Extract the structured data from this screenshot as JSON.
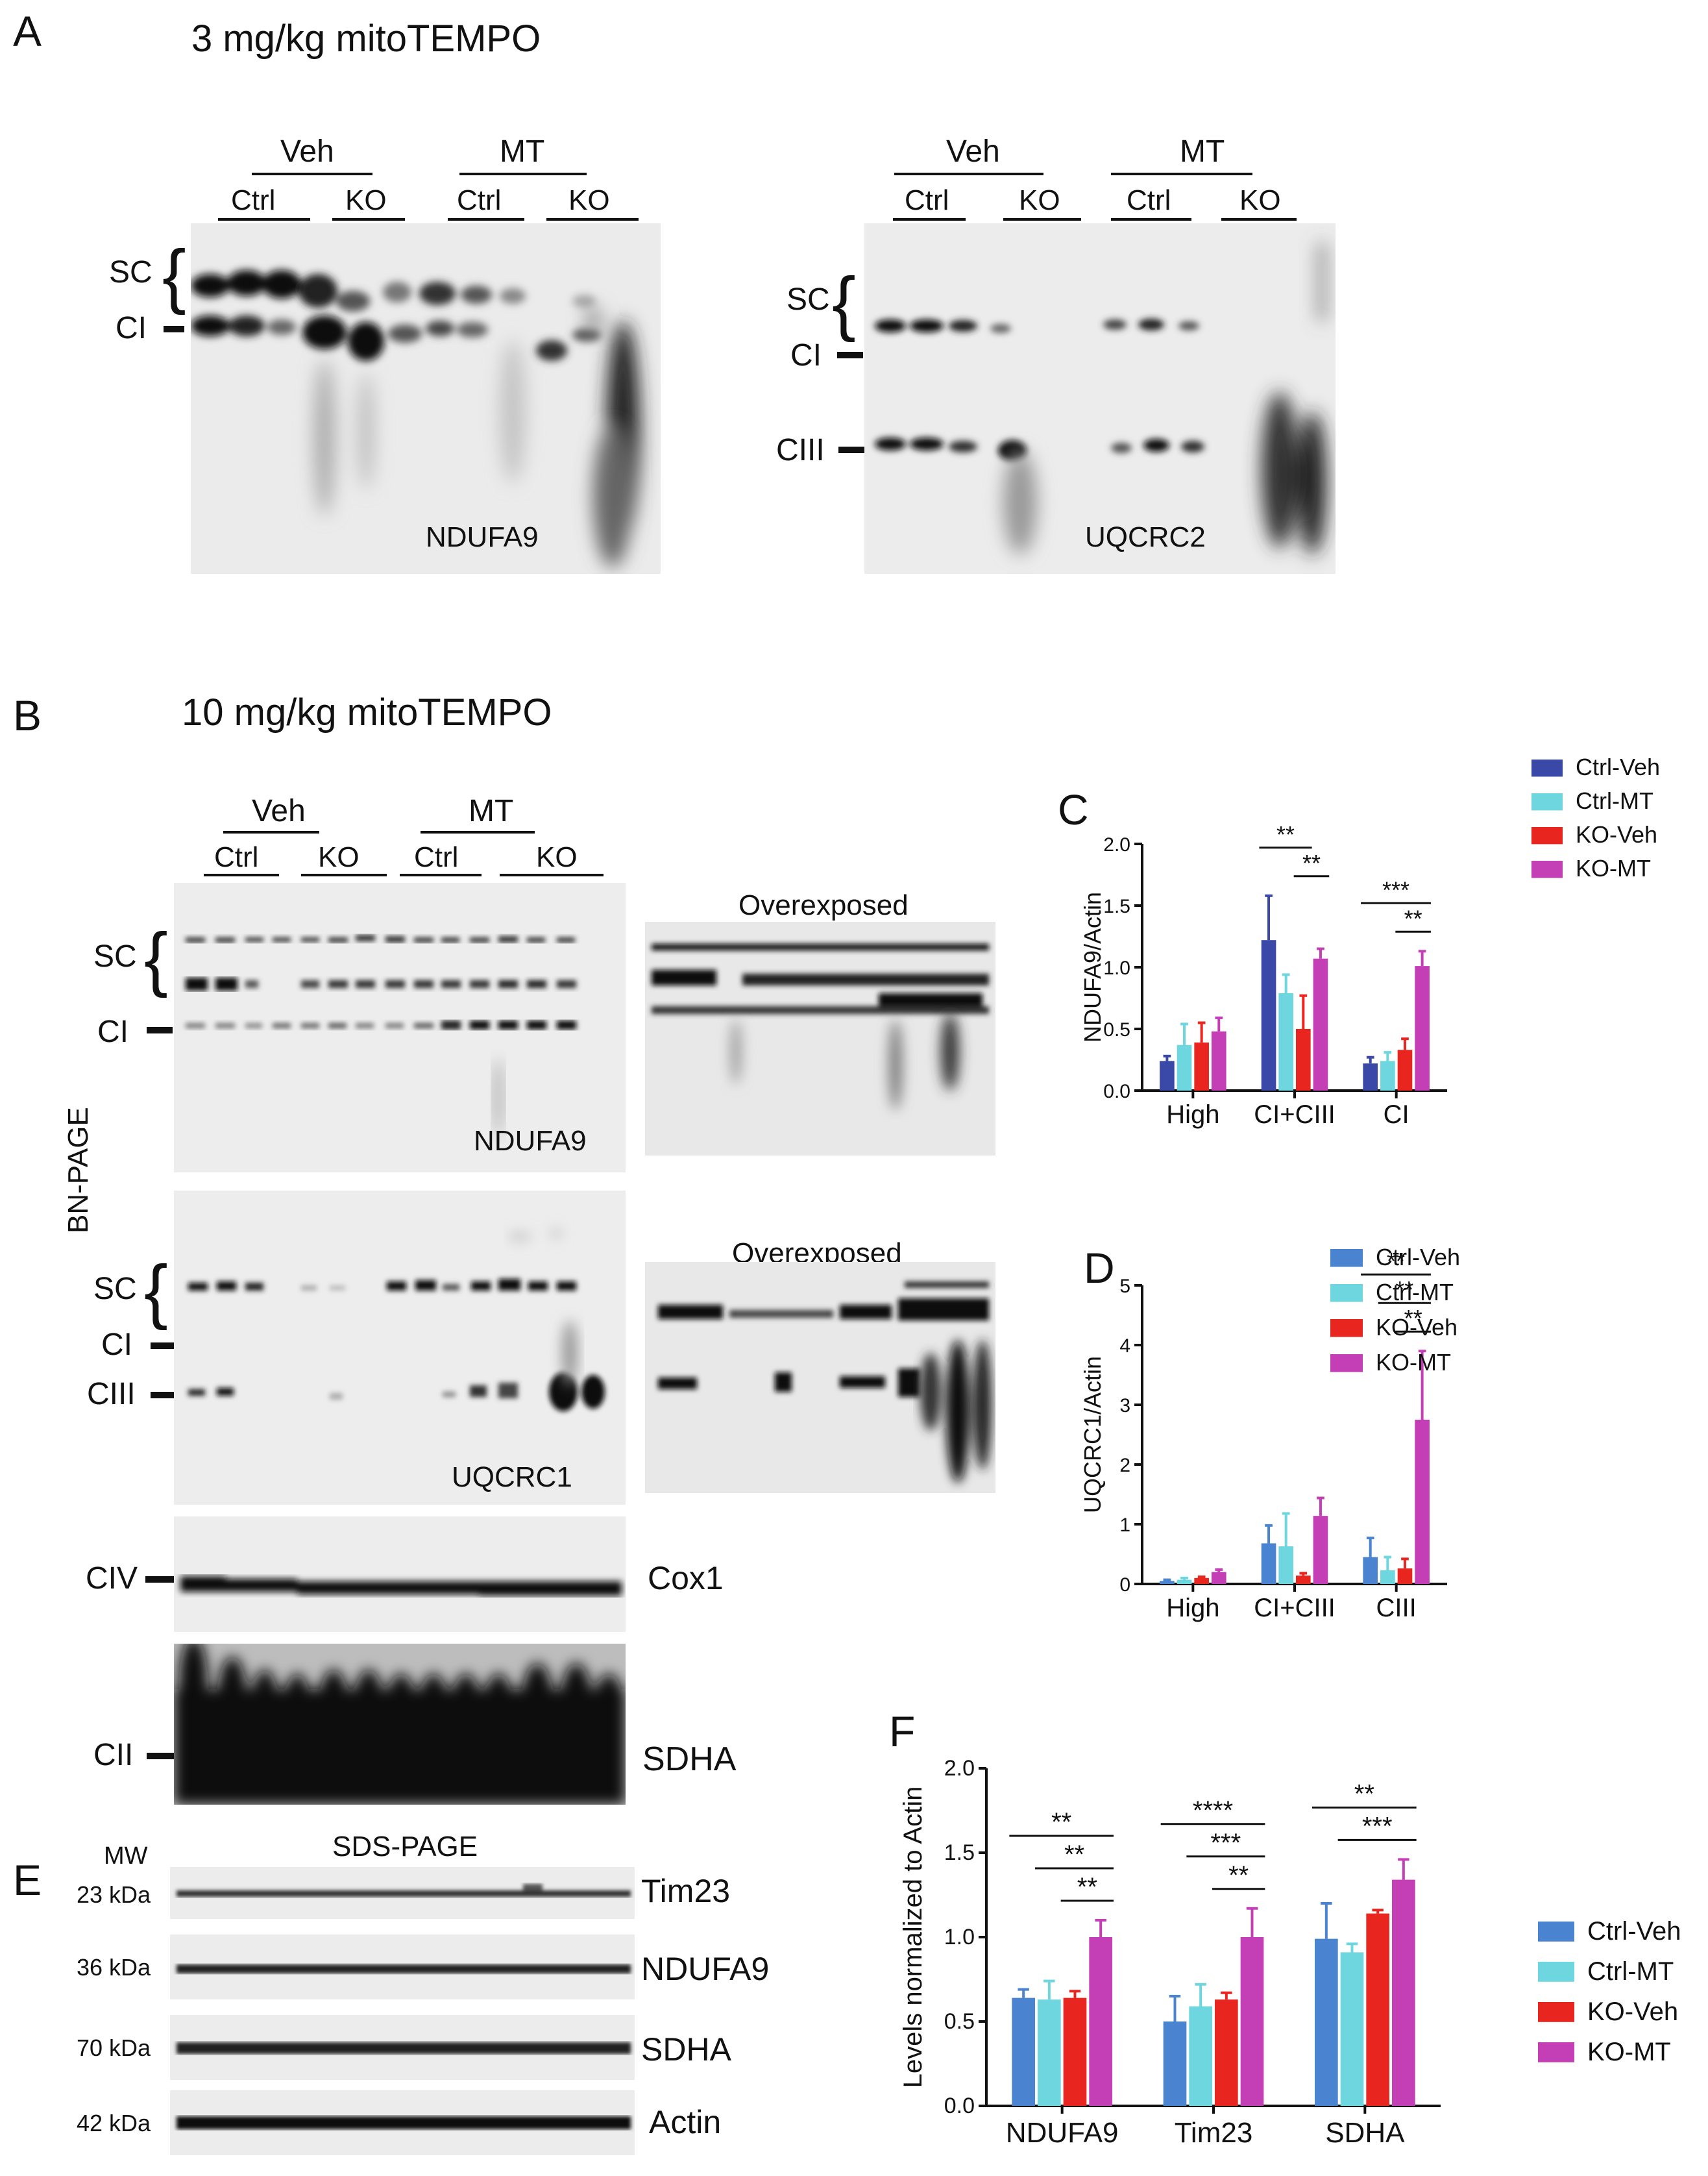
{
  "panelA": {
    "letter": "A",
    "title": "3 mg/kg mitoTEMPO",
    "blot1": {
      "groups": [
        "Veh",
        "MT"
      ],
      "subgroups": [
        "Ctrl",
        "KO",
        "Ctrl",
        "KO"
      ],
      "markers": [
        "SC",
        "CI"
      ],
      "antibody": "NDUFA9"
    },
    "blot2": {
      "groups": [
        "Veh",
        "MT"
      ],
      "subgroups": [
        "Ctrl",
        "KO",
        "Ctrl",
        "KO"
      ],
      "markers": [
        "SC",
        "CI",
        "CIII"
      ],
      "antibody": "UQCRC2"
    }
  },
  "panelB": {
    "letter": "B",
    "title": "10 mg/kg mitoTEMPO",
    "side_label": "BN-PAGE",
    "groups": [
      "Veh",
      "MT"
    ],
    "subgroups": [
      "Ctrl",
      "KO",
      "Ctrl",
      "KO"
    ],
    "blot_ndufa9": {
      "markers": [
        "SC",
        "CI"
      ],
      "antibody": "NDUFA9",
      "overexposed": "Overexposed"
    },
    "blot_uqcrc1": {
      "markers": [
        "SC",
        "CI",
        "CIII"
      ],
      "antibody": "UQCRC1",
      "overexposed": "Overexposed"
    },
    "blot_cox1": {
      "marker": "CIV",
      "antibody": "Cox1"
    },
    "blot_sdha": {
      "marker": "CII",
      "antibody": "SDHA"
    }
  },
  "panelE": {
    "letter": "E",
    "mw_label": "MW",
    "title": "SDS-PAGE",
    "rows": [
      {
        "mw": "23 kDa",
        "antibody": "Tim23"
      },
      {
        "mw": "36 kDa",
        "antibody": "NDUFA9"
      },
      {
        "mw": "70 kDa",
        "antibody": "SDHA"
      },
      {
        "mw": "42 kDa",
        "antibody": "Actin"
      }
    ]
  },
  "colors": {
    "ctrl_veh_dark": "#3a48a8",
    "ctrl_veh": "#4a84d0",
    "ctrl_mt": "#6dd6de",
    "ko_veh": "#e8251f",
    "ko_mt": "#c43fb6"
  },
  "chart_data": [
    {
      "panel": "C",
      "type": "bar",
      "ylabel": "NDUFA9/Actin",
      "ylim": [
        0,
        2.0
      ],
      "yticks": [
        "0.0",
        "0.5",
        "1.0",
        "1.5",
        "2.0"
      ],
      "categories": [
        "High",
        "CI+CIII",
        "CI"
      ],
      "series": [
        {
          "name": "Ctrl-Veh",
          "values": [
            0.24,
            1.22,
            0.22
          ],
          "errors": [
            0.04,
            0.36,
            0.05
          ]
        },
        {
          "name": "Ctrl-MT",
          "values": [
            0.37,
            0.79,
            0.24
          ],
          "errors": [
            0.17,
            0.15,
            0.07
          ]
        },
        {
          "name": "KO-Veh",
          "values": [
            0.39,
            0.5,
            0.33
          ],
          "errors": [
            0.16,
            0.27,
            0.09
          ]
        },
        {
          "name": "KO-MT",
          "values": [
            0.48,
            1.07,
            1.01
          ],
          "errors": [
            0.11,
            0.08,
            0.12
          ]
        }
      ],
      "significance": [
        {
          "label": "**",
          "category": 1,
          "from": 0,
          "to": 2
        },
        {
          "label": "**",
          "category": 1,
          "from": 2,
          "to": 3
        },
        {
          "label": "***",
          "category": 2,
          "from": 0,
          "to": 3
        },
        {
          "label": "**",
          "category": 2,
          "from": 2,
          "to": 3
        }
      ],
      "legend": "top-right"
    },
    {
      "panel": "D",
      "type": "bar",
      "ylabel": "UQCRC1/Actin",
      "ylim": [
        0,
        5
      ],
      "yticks": [
        "0",
        "1",
        "2",
        "3",
        "4",
        "5"
      ],
      "categories": [
        "High",
        "CI+CIII",
        "CIII"
      ],
      "series": [
        {
          "name": "Ctrl-Veh",
          "values": [
            0.05,
            0.68,
            0.45
          ],
          "errors": [
            0.02,
            0.3,
            0.32
          ]
        },
        {
          "name": "Ctrl-MT",
          "values": [
            0.07,
            0.63,
            0.23
          ],
          "errors": [
            0.03,
            0.55,
            0.22
          ]
        },
        {
          "name": "KO-Veh",
          "values": [
            0.1,
            0.14,
            0.26
          ],
          "errors": [
            0.02,
            0.04,
            0.16
          ]
        },
        {
          "name": "KO-MT",
          "values": [
            0.2,
            1.14,
            2.75
          ],
          "errors": [
            0.04,
            0.3,
            1.15
          ]
        }
      ],
      "significance": [
        {
          "label": "**",
          "category": 2,
          "from": 0,
          "to": 3
        },
        {
          "label": "**",
          "category": 2,
          "from": 1,
          "to": 3
        },
        {
          "label": "**",
          "category": 2,
          "from": 2,
          "to": 3
        }
      ],
      "legend": "top-left"
    },
    {
      "panel": "F",
      "type": "bar",
      "ylabel": "Levels normalized to Actin",
      "ylim": [
        0,
        2.0
      ],
      "yticks": [
        "0.0",
        "0.5",
        "1.0",
        "1.5",
        "2.0"
      ],
      "categories": [
        "NDUFA9",
        "Tim23",
        "SDHA"
      ],
      "series": [
        {
          "name": "Ctrl-Veh",
          "values": [
            0.64,
            0.5,
            0.99
          ],
          "errors": [
            0.05,
            0.15,
            0.21
          ]
        },
        {
          "name": "Ctrl-MT",
          "values": [
            0.63,
            0.59,
            0.91
          ],
          "errors": [
            0.11,
            0.13,
            0.05
          ]
        },
        {
          "name": "KO-Veh",
          "values": [
            0.64,
            0.63,
            1.14
          ],
          "errors": [
            0.04,
            0.04,
            0.02
          ]
        },
        {
          "name": "KO-MT",
          "values": [
            1.0,
            1.0,
            1.34
          ],
          "errors": [
            0.1,
            0.17,
            0.12
          ]
        }
      ],
      "significance": [
        {
          "label": "**",
          "category": 0,
          "from": 0,
          "to": 3
        },
        {
          "label": "**",
          "category": 0,
          "from": 1,
          "to": 3
        },
        {
          "label": "**",
          "category": 0,
          "from": 2,
          "to": 3
        },
        {
          "label": "****",
          "category": 1,
          "from": 0,
          "to": 3
        },
        {
          "label": "***",
          "category": 1,
          "from": 1,
          "to": 3
        },
        {
          "label": "**",
          "category": 1,
          "from": 2,
          "to": 3
        },
        {
          "label": "**",
          "category": 2,
          "from": 0,
          "to": 3
        },
        {
          "label": "***",
          "category": 2,
          "from": 1,
          "to": 3
        }
      ],
      "legend": "right"
    }
  ],
  "chart_panel_letters": {
    "C": "C",
    "D": "D",
    "F": "F"
  }
}
